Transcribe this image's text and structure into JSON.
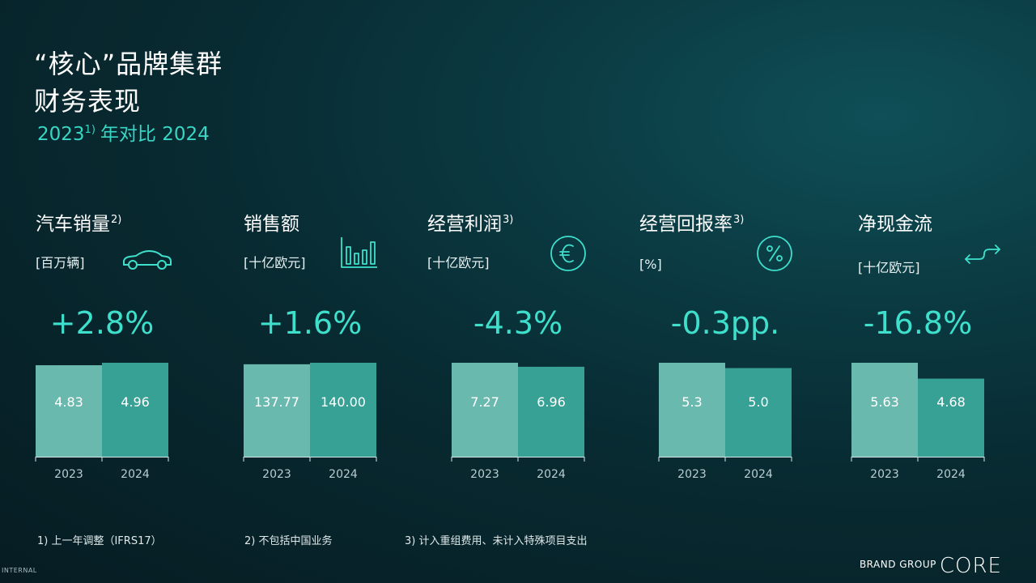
{
  "header": {
    "title_line1": "“核心”品牌集群",
    "title_line2": "财务表现",
    "subtitle_year_a": "2023",
    "subtitle_sup": "1)",
    "subtitle_rest": "年对比 2024"
  },
  "metrics": [
    {
      "title": "汽车销量",
      "sup": "2)",
      "unit": "[百万辆]",
      "icon": "car-icon",
      "change": "+2.8%"
    },
    {
      "title": "销售额",
      "sup": "",
      "unit": "[十亿欧元]",
      "icon": "bar-chart-icon",
      "change": "+1.6%"
    },
    {
      "title": "经营利润",
      "sup": "3)",
      "unit": "[十亿欧元]",
      "icon": "euro-icon",
      "change": "-4.3%"
    },
    {
      "title": "经营回报率",
      "sup": "3)",
      "unit": "[%]",
      "icon": "percent-icon",
      "change": "-0.3pp."
    },
    {
      "title": "净现金流",
      "sup": "",
      "unit": "[十亿欧元]",
      "icon": "cash-flow-icon",
      "change": "-16.8%"
    }
  ],
  "chart_data": [
    {
      "type": "bar",
      "categories": [
        "2023",
        "2024"
      ],
      "values": [
        4.83,
        4.96
      ],
      "labels": [
        "4.83",
        "4.96"
      ]
    },
    {
      "type": "bar",
      "categories": [
        "2023",
        "2024"
      ],
      "values": [
        137.77,
        140.0
      ],
      "labels": [
        "137.77",
        "140.00"
      ]
    },
    {
      "type": "bar",
      "categories": [
        "2023",
        "2024"
      ],
      "values": [
        7.27,
        6.96
      ],
      "labels": [
        "7.27",
        "6.96"
      ]
    },
    {
      "type": "bar",
      "categories": [
        "2023",
        "2024"
      ],
      "values": [
        5.3,
        5.0
      ],
      "labels": [
        "5.3",
        "5.0"
      ]
    },
    {
      "type": "bar",
      "categories": [
        "2023",
        "2024"
      ],
      "values": [
        5.63,
        4.68
      ],
      "labels": [
        "5.63",
        "4.68"
      ]
    }
  ],
  "colors": {
    "bar_2023": "#6ab9ae",
    "bar_2024": "#37a195",
    "accent": "#3ee0cc",
    "axis_label": "#b9cdd0"
  },
  "footnotes": [
    "1) 上一年调整（IFRS17）",
    "2) 不包括中国业务",
    "3) 计入重组费用、未计入特殊项目支出"
  ],
  "brand": {
    "small": "BRAND GROUP",
    "big": "CORE"
  },
  "internal_label": "INTERNAL"
}
